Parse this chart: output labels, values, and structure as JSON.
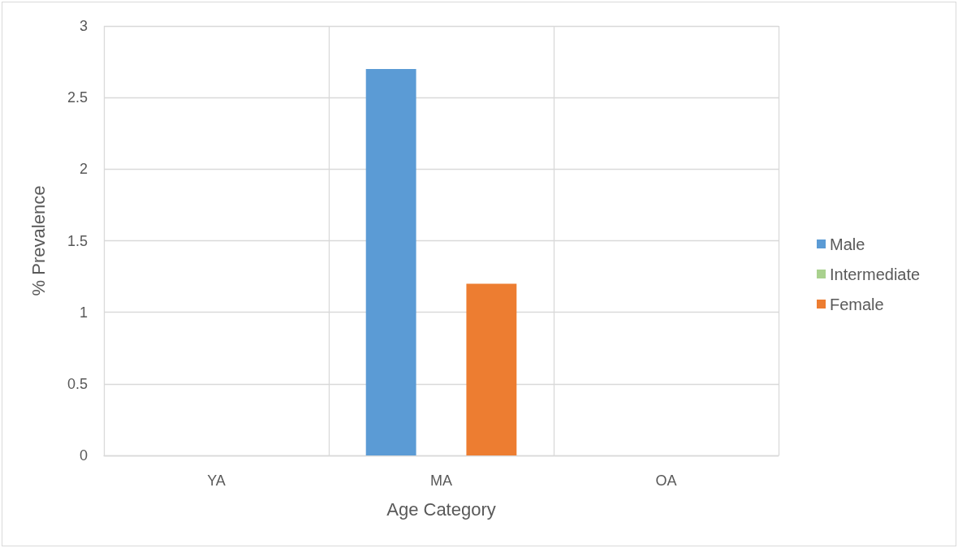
{
  "chart_data": {
    "type": "bar",
    "xlabel": "Age Category",
    "ylabel": "% Prevalence",
    "categories": [
      "YA",
      "MA",
      "OA"
    ],
    "series": [
      {
        "name": "Male",
        "color": "#5b9bd5",
        "values": [
          0,
          2.7,
          0
        ]
      },
      {
        "name": "Intermediate",
        "color": "#a9d18e",
        "values": [
          0,
          0,
          0
        ]
      },
      {
        "name": "Female",
        "color": "#ed7d31",
        "values": [
          0,
          1.2,
          0
        ]
      }
    ],
    "ylim": [
      0,
      3
    ],
    "yticks": [
      0,
      0.5,
      1,
      1.5,
      2,
      2.5,
      3
    ],
    "grid": true,
    "legend": "right"
  }
}
